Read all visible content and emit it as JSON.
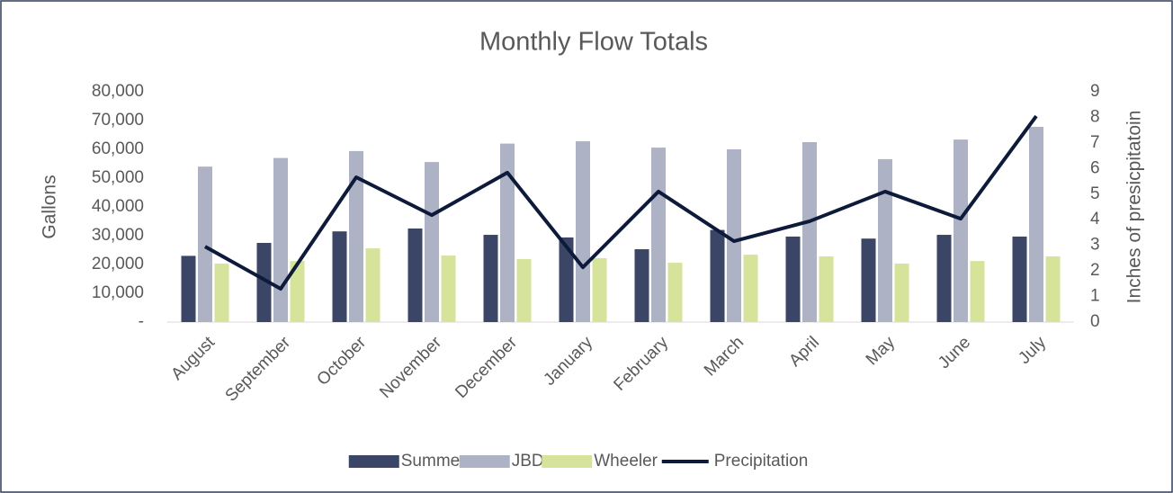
{
  "chart_data": {
    "type": "bar",
    "title": "Monthly Flow Totals",
    "y_label": "Gallons",
    "y2_label": "Inches of presicpitatoin",
    "categories": [
      "August",
      "September",
      "October",
      "November",
      "December",
      "January",
      "February",
      "March",
      "April",
      "May",
      "June",
      "July"
    ],
    "series": [
      {
        "name": "Summer",
        "color": "#3b4566",
        "values": [
          23000,
          27500,
          31500,
          32500,
          30300,
          29400,
          25300,
          32000,
          29700,
          29000,
          30300,
          29700
        ]
      },
      {
        "name": "JBD",
        "color": "#aeb2c5",
        "values": [
          54000,
          57000,
          59400,
          55600,
          62000,
          62800,
          60600,
          60000,
          62500,
          56600,
          63400,
          67800
        ]
      },
      {
        "name": "Wheeler",
        "color": "#d6e39a",
        "values": [
          20300,
          21200,
          25600,
          23100,
          21900,
          22200,
          20600,
          23400,
          22800,
          20300,
          21200,
          22800
        ]
      },
      {
        "name": "Precipitation",
        "color": "#0d1a3a",
        "type": "line",
        "axis": "y2",
        "values": [
          2.95,
          1.3,
          5.66,
          4.18,
          5.84,
          2.14,
          5.1,
          3.16,
          3.94,
          5.1,
          4.04,
          8.05
        ]
      }
    ],
    "ylim": [
      0,
      80000
    ],
    "yticks": [
      {
        "value": 0,
        "label": "-"
      },
      {
        "value": 10000,
        "label": "10,000"
      },
      {
        "value": 20000,
        "label": "20,000"
      },
      {
        "value": 30000,
        "label": "30,000"
      },
      {
        "value": 40000,
        "label": "40,000"
      },
      {
        "value": 50000,
        "label": "50,000"
      },
      {
        "value": 60000,
        "label": "60,000"
      },
      {
        "value": 70000,
        "label": "70,000"
      },
      {
        "value": 80000,
        "label": "80,000"
      }
    ],
    "y2lim": [
      0,
      9
    ],
    "y2ticks": [
      0,
      1,
      2,
      3,
      4,
      5,
      6,
      7,
      8,
      9
    ],
    "grid": false,
    "legend": "bottom"
  }
}
